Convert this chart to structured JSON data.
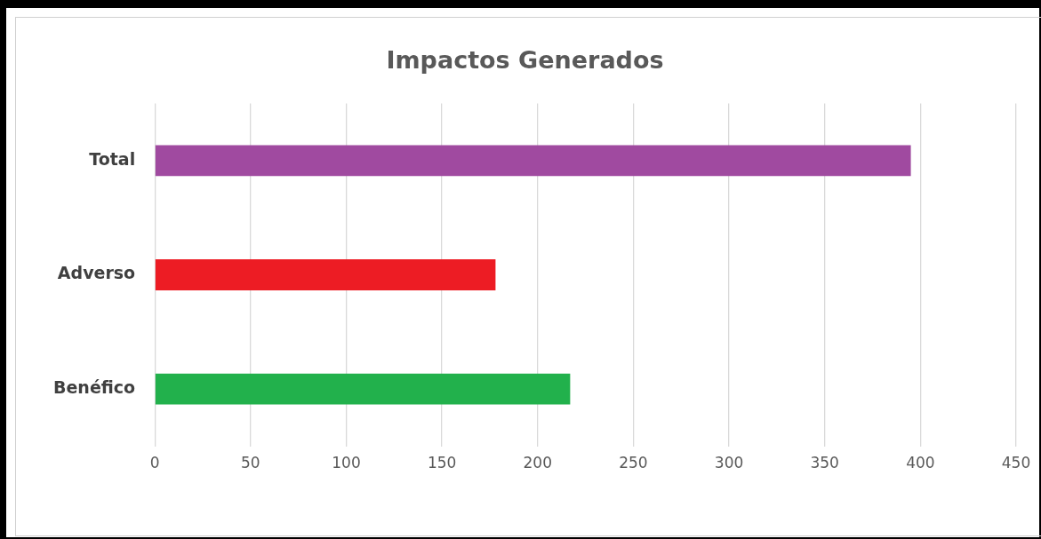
{
  "chart_data": {
    "type": "bar",
    "orientation": "horizontal",
    "title": "Impactos Generados",
    "categories": [
      "Total",
      "Adverso",
      "Benéfico"
    ],
    "values": [
      395,
      178,
      217
    ],
    "colors": [
      "#a04aa0",
      "#ed1c24",
      "#22b14c"
    ],
    "xlim": [
      0,
      450
    ],
    "xticks": [
      0,
      50,
      100,
      150,
      200,
      250,
      300,
      350,
      400,
      450
    ],
    "grid": "x",
    "legend": false
  }
}
